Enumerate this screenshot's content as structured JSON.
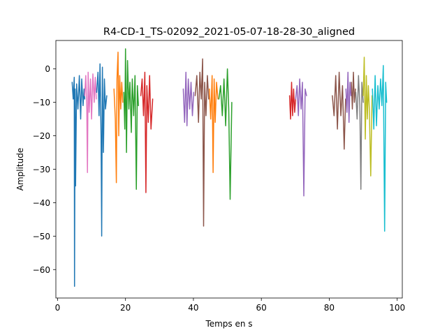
{
  "chart_data": {
    "type": "line",
    "title": "R4-CD-1_TS-02092_2021-05-07-18-28-30_aligned",
    "xlabel": "Temps en s",
    "ylabel": "Amplitude",
    "xlim": [
      -0.5,
      101.5
    ],
    "ylim": [
      -68.5,
      8.5
    ],
    "xticks": [
      0,
      20,
      40,
      60,
      80,
      100
    ],
    "yticks": [
      0,
      -10,
      -20,
      -30,
      -40,
      -50,
      -60
    ],
    "ytick_labels": [
      "0",
      "−10",
      "−20",
      "−30",
      "−40",
      "−50",
      "−60"
    ],
    "grid": false,
    "series": [
      {
        "color": "#1f77b4",
        "x": [
          4.3,
          4.6,
          4.9,
          5.0,
          5.15,
          5.3,
          5.6,
          6.0,
          6.4,
          6.8,
          7.1,
          7.5,
          7.8,
          8.0
        ],
        "y": [
          -4.0,
          -9.0,
          -2.5,
          -65.0,
          -6.0,
          -35.0,
          -4.5,
          -12.0,
          -2.0,
          -15.0,
          -3.0,
          -11.0,
          -6.0,
          -9.0
        ]
      },
      {
        "color": "#e377c2",
        "x": [
          8.0,
          8.3,
          8.6,
          8.8,
          9.0,
          9.3,
          9.7,
          10.0,
          10.4,
          10.8,
          11.1,
          11.4
        ],
        "y": [
          -8.0,
          -2.0,
          -12.0,
          -31.0,
          -1.0,
          -13.0,
          -3.0,
          -15.0,
          -1.5,
          -10.0,
          -2.5,
          -9.0
        ]
      },
      {
        "color": "#1f77b4",
        "x": [
          11.5,
          11.9,
          12.2,
          12.5,
          12.8,
          13.0,
          13.2,
          13.5,
          13.8,
          14.1,
          14.5
        ],
        "y": [
          -7.0,
          -1.0,
          -14.0,
          1.5,
          -20.0,
          -50.0,
          0.5,
          -25.0,
          -3.0,
          -12.0,
          -8.0
        ]
      },
      {
        "color": "#ff7f0e",
        "x": [
          16.6,
          17.0,
          17.3,
          17.5,
          17.8,
          18.0,
          18.3,
          18.6,
          18.9,
          19.2
        ],
        "y": [
          -6.0,
          -15.0,
          -34.0,
          -3.0,
          5.0,
          -20.0,
          -2.0,
          -12.0,
          -4.0,
          -10.0
        ]
      },
      {
        "color": "#2ca02c",
        "x": [
          19.5,
          19.8,
          20.0,
          20.3,
          20.6,
          21.0,
          21.3,
          21.7,
          22.0,
          22.4,
          22.8,
          23.2,
          23.5,
          23.8
        ],
        "y": [
          -7.0,
          -18.0,
          6.0,
          -25.0,
          2.5,
          -12.0,
          -4.0,
          -19.0,
          -3.0,
          -14.0,
          -2.0,
          -36.0,
          -5.0,
          -11.0
        ]
      },
      {
        "color": "#d62728",
        "x": [
          24.5,
          24.9,
          25.3,
          25.7,
          26.0,
          26.3,
          26.7,
          27.1,
          27.5,
          28.0
        ],
        "y": [
          -8.0,
          -3.0,
          -14.0,
          -1.0,
          -37.0,
          -5.0,
          -16.0,
          -2.0,
          -18.0,
          -9.0
        ]
      },
      {
        "color": "#9467bd",
        "x": [
          37.0,
          37.4,
          37.8,
          38.1,
          38.5,
          38.9,
          39.3,
          39.7,
          40.1
        ],
        "y": [
          -6.0,
          -16.0,
          -1.0,
          -17.0,
          -3.0,
          -12.0,
          -4.0,
          -14.0,
          -7.0
        ]
      },
      {
        "color": "#8c564b",
        "x": [
          40.5,
          41.0,
          41.5,
          41.9,
          42.3,
          42.7,
          43.0,
          43.3,
          43.7,
          44.1,
          44.5
        ],
        "y": [
          -8.0,
          -2.0,
          -16.0,
          -1.0,
          -9.0,
          3.0,
          -47.0,
          -4.0,
          -14.0,
          -2.0,
          -9.0
        ]
      },
      {
        "color": "#ff7f0e",
        "x": [
          44.7,
          45.1,
          45.5,
          45.8,
          46.1,
          46.4,
          46.8,
          47.2
        ],
        "y": [
          -6.0,
          -15.0,
          -2.0,
          -31.0,
          -3.0,
          -16.0,
          -4.0,
          -9.0
        ]
      },
      {
        "color": "#2ca02c",
        "x": [
          47.5,
          48.0,
          48.5,
          49.0,
          49.5,
          50.0,
          50.4,
          50.8,
          51.3
        ],
        "y": [
          -9.0,
          -5.0,
          -14.0,
          -3.0,
          -17.0,
          0.0,
          -12.0,
          -39.0,
          -10.0
        ]
      },
      {
        "color": "#d62728",
        "x": [
          68.3,
          68.6,
          68.9,
          69.2,
          69.5,
          69.8,
          70.1
        ],
        "y": [
          -8.0,
          -15.0,
          -4.0,
          -14.0,
          -6.0,
          -13.0,
          -9.0
        ]
      },
      {
        "color": "#9467bd",
        "x": [
          70.1,
          70.5,
          70.9,
          71.3,
          71.7,
          72.1,
          72.5,
          72.9,
          73.3
        ],
        "y": [
          -9.0,
          -5.0,
          -14.0,
          -3.0,
          -12.0,
          -4.0,
          -38.0,
          -6.0,
          -8.0
        ]
      },
      {
        "color": "#8c564b",
        "x": [
          80.9,
          81.4,
          81.9,
          82.4,
          82.9,
          83.4,
          83.9,
          84.4,
          84.8
        ],
        "y": [
          -8.0,
          -14.0,
          -2.0,
          -18.0,
          -1.0,
          -14.0,
          -5.0,
          -24.0,
          -9.0
        ]
      },
      {
        "color": "#9467bd",
        "x": [
          84.9,
          85.2,
          85.5,
          85.8,
          86.1,
          86.4
        ],
        "y": [
          -6.0,
          -13.0,
          -1.0,
          -16.0,
          -4.0,
          -8.0
        ]
      },
      {
        "color": "#8c564b",
        "x": [
          86.5,
          86.8,
          87.1,
          87.4,
          87.7
        ],
        "y": [
          -4.0,
          -12.0,
          -1.0,
          -10.0,
          -6.0
        ]
      },
      {
        "color": "#7f7f7f",
        "x": [
          87.8,
          88.2,
          88.6,
          89.0,
          89.3,
          89.6,
          90.0
        ],
        "y": [
          -7.0,
          -15.0,
          -2.0,
          -11.0,
          -36.0,
          -4.0,
          -10.0
        ]
      },
      {
        "color": "#bcbd22",
        "x": [
          90.0,
          90.3,
          90.6,
          90.9,
          91.2,
          91.5,
          91.8,
          92.2,
          92.6
        ],
        "y": [
          -8.0,
          3.5,
          -21.0,
          -2.0,
          -15.0,
          -5.0,
          -12.0,
          -32.0,
          -8.0
        ]
      },
      {
        "color": "#17becf",
        "x": [
          92.7,
          93.1,
          93.5,
          93.9,
          94.3,
          94.7,
          95.1,
          95.5,
          95.9,
          96.3,
          96.6,
          96.9
        ],
        "y": [
          -6.0,
          -18.0,
          -2.0,
          -17.0,
          -5.0,
          -12.0,
          -3.0,
          -11.0,
          1.0,
          -48.5,
          -4.0,
          -10.0
        ]
      }
    ]
  }
}
